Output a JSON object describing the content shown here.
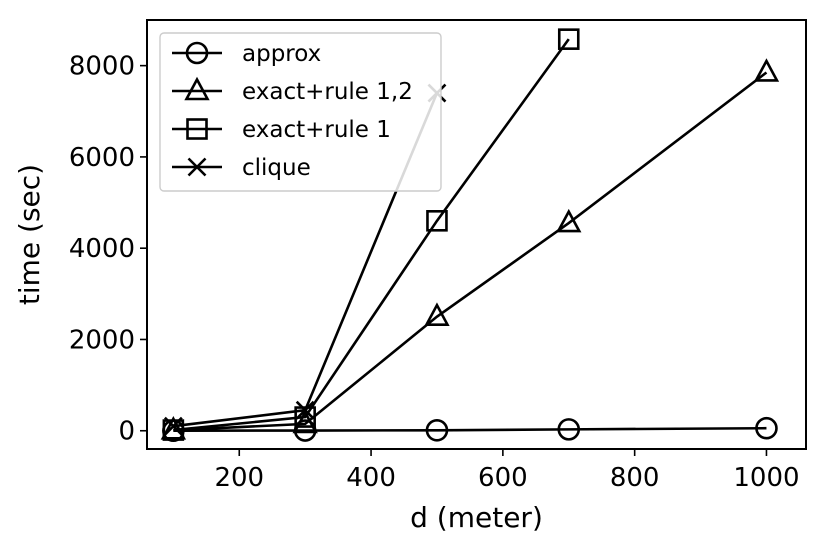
{
  "chart_data": {
    "type": "line",
    "title": "",
    "xlabel": "d (meter)",
    "ylabel": "time (sec)",
    "xlim": [
      60,
      1060
    ],
    "ylim": [
      -400,
      9000
    ],
    "xticks": [
      200,
      400,
      600,
      800,
      1000
    ],
    "yticks": [
      0,
      2000,
      4000,
      6000,
      8000
    ],
    "grid": false,
    "legend_position": "top-left",
    "series_color": "#000000",
    "series": [
      {
        "name": "approx",
        "marker": "circle",
        "x": [
          100,
          300,
          500,
          700,
          1000
        ],
        "y": [
          0,
          5,
          10,
          30,
          55
        ]
      },
      {
        "name": "exact+rule 1,2",
        "marker": "triangle",
        "x": [
          100,
          300,
          500,
          700,
          1000
        ],
        "y": [
          10,
          150,
          2500,
          4550,
          7850
        ]
      },
      {
        "name": "exact+rule 1",
        "marker": "square",
        "x": [
          100,
          300,
          500,
          700
        ],
        "y": [
          15,
          300,
          4600,
          8580
        ]
      },
      {
        "name": "clique",
        "marker": "x",
        "x": [
          100,
          300,
          500
        ],
        "y": [
          100,
          450,
          7400
        ]
      }
    ]
  }
}
